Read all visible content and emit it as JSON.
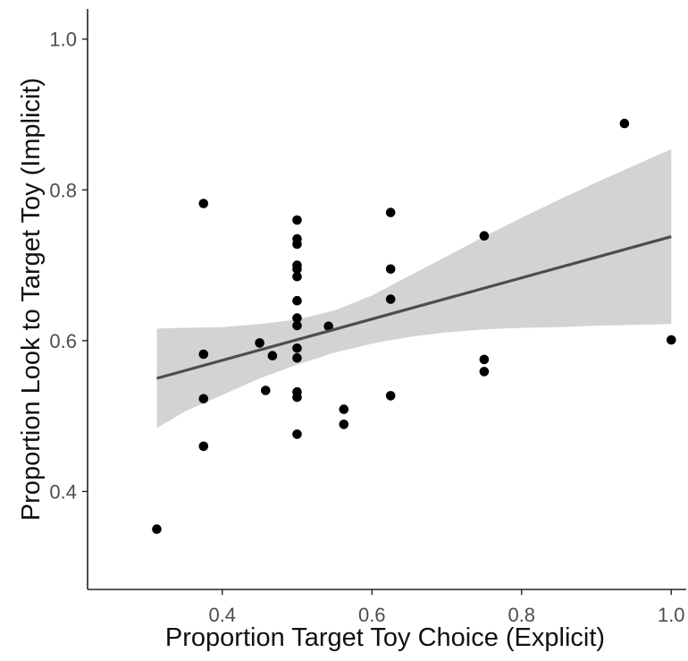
{
  "chart_data": {
    "type": "scatter",
    "title": "",
    "xlabel": "Proportion Target Toy Choice (Explicit)",
    "ylabel": "Proportion Look to Target Toy (Implicit)",
    "xlim": [
      0.22,
      1.02
    ],
    "ylim": [
      0.27,
      1.04
    ],
    "x_ticks": [
      0.4,
      0.6,
      0.8,
      1.0
    ],
    "x_tick_labels": [
      "0.4",
      "0.6",
      "0.8",
      "1.0"
    ],
    "y_ticks": [
      0.4,
      0.6,
      0.8,
      1.0
    ],
    "y_tick_labels": [
      "0.4",
      "0.6",
      "0.8",
      "1.0"
    ],
    "grid": false,
    "legend": "none",
    "points": [
      {
        "x": 0.3125,
        "y": 0.35
      },
      {
        "x": 0.375,
        "y": 0.782
      },
      {
        "x": 0.375,
        "y": 0.582
      },
      {
        "x": 0.375,
        "y": 0.523
      },
      {
        "x": 0.375,
        "y": 0.46
      },
      {
        "x": 0.45,
        "y": 0.597
      },
      {
        "x": 0.458,
        "y": 0.534
      },
      {
        "x": 0.467,
        "y": 0.58
      },
      {
        "x": 0.5,
        "y": 0.76
      },
      {
        "x": 0.5,
        "y": 0.735
      },
      {
        "x": 0.5,
        "y": 0.728
      },
      {
        "x": 0.5,
        "y": 0.7
      },
      {
        "x": 0.5,
        "y": 0.695
      },
      {
        "x": 0.5,
        "y": 0.685
      },
      {
        "x": 0.5,
        "y": 0.653
      },
      {
        "x": 0.5,
        "y": 0.63
      },
      {
        "x": 0.5,
        "y": 0.62
      },
      {
        "x": 0.5,
        "y": 0.59
      },
      {
        "x": 0.5,
        "y": 0.577
      },
      {
        "x": 0.5,
        "y": 0.532
      },
      {
        "x": 0.5,
        "y": 0.525
      },
      {
        "x": 0.5,
        "y": 0.476
      },
      {
        "x": 0.542,
        "y": 0.619
      },
      {
        "x": 0.5625,
        "y": 0.509
      },
      {
        "x": 0.5625,
        "y": 0.489
      },
      {
        "x": 0.625,
        "y": 0.77
      },
      {
        "x": 0.625,
        "y": 0.695
      },
      {
        "x": 0.625,
        "y": 0.655
      },
      {
        "x": 0.625,
        "y": 0.527
      },
      {
        "x": 0.75,
        "y": 0.739
      },
      {
        "x": 0.75,
        "y": 0.575
      },
      {
        "x": 0.75,
        "y": 0.559
      },
      {
        "x": 0.9375,
        "y": 0.888
      },
      {
        "x": 1.0,
        "y": 0.601
      }
    ],
    "regression": {
      "x": [
        0.3125,
        1.0
      ],
      "y": [
        0.55,
        0.738
      ]
    },
    "confidence_band": {
      "x": [
        0.3125,
        0.35,
        0.4,
        0.45,
        0.5,
        0.55,
        0.6,
        0.65,
        0.7,
        0.75,
        0.8,
        0.85,
        0.9,
        0.95,
        1.0
      ],
      "upper": [
        0.616,
        0.617,
        0.618,
        0.622,
        0.628,
        0.64,
        0.66,
        0.686,
        0.712,
        0.738,
        0.763,
        0.787,
        0.81,
        0.832,
        0.854
      ],
      "lower": [
        0.484,
        0.506,
        0.528,
        0.55,
        0.568,
        0.584,
        0.596,
        0.605,
        0.611,
        0.615,
        0.617,
        0.618,
        0.62,
        0.621,
        0.622
      ]
    },
    "colors": {
      "points": "#000000",
      "line": "#4d4d4d",
      "band": "#d3d3d3",
      "axis": "#222222",
      "tick_text": "#4d4d4d",
      "title_text": "#111111"
    }
  }
}
